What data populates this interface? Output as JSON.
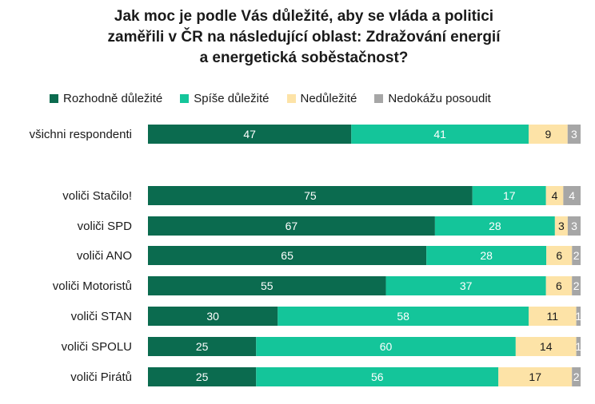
{
  "title": {
    "line1": "Jak moc je podle Vás důležité, aby se vláda a politici",
    "line2": "zaměřili v ČR na následující oblast: Zdražování energií",
    "line3": "a energetická soběstačnost?"
  },
  "chart_data": {
    "type": "bar",
    "orientation": "horizontal",
    "stacked": true,
    "categories": [
      "všichni respondenti",
      "voliči Stačilo!",
      "voliči SPD",
      "voliči ANO",
      "voliči Motoristů",
      "voliči STAN",
      "voliči SPOLU",
      "voliči Pirátů"
    ],
    "series": [
      {
        "name": "Rozhodně důležité",
        "color": "#0b6b4f",
        "label_color": "#ffffff",
        "values": [
          47,
          75,
          67,
          65,
          55,
          30,
          25,
          25
        ]
      },
      {
        "name": "Spíše důležité",
        "color": "#14c59a",
        "label_color": "#ffffff",
        "values": [
          41,
          17,
          28,
          28,
          37,
          58,
          60,
          56
        ]
      },
      {
        "name": "Nedůležité",
        "color": "#fde3a7",
        "label_color": "#1a1a1a",
        "values": [
          9,
          4,
          3,
          6,
          6,
          11,
          14,
          17
        ]
      },
      {
        "name": "Nedokážu posoudit",
        "color": "#a6a6a6",
        "label_color": "#ffffff",
        "values": [
          3,
          4,
          3,
          2,
          2,
          1,
          1,
          2
        ]
      }
    ],
    "xlim": [
      0,
      100
    ],
    "legend_position": "top",
    "grid": false
  }
}
